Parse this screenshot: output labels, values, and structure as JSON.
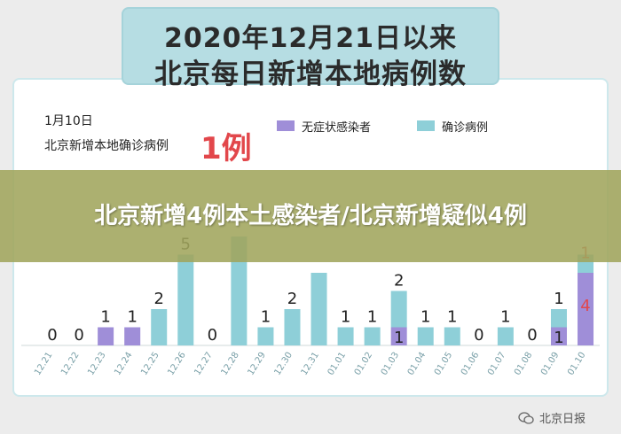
{
  "title": {
    "line1": "2020年12月21日以来",
    "line2": "北京每日新增本地病例数"
  },
  "note": {
    "date": "1月10日",
    "label": "北京新增本地确诊病例",
    "count": "1例"
  },
  "banner": {
    "text": "北京新增4例本土感染者/北京新增疑似4例"
  },
  "watermark": {
    "text": "北京日报"
  },
  "colors": {
    "confirmed": "#8ecfd8",
    "asymptomatic": "#9f8ed8",
    "highlight": "#e2474b"
  },
  "chart_data": {
    "type": "bar",
    "stacked": true,
    "categories": [
      "12.21",
      "12.22",
      "12.23",
      "12.24",
      "12.25",
      "12.26",
      "12.27",
      "12.28",
      "12.29",
      "12.30",
      "12.31",
      "01.01",
      "01.02",
      "01.03",
      "01.04",
      "01.05",
      "01.06",
      "01.07",
      "01.08",
      "01.09",
      "01.10"
    ],
    "series": [
      {
        "name": "无症状感染者",
        "values": [
          0,
          0,
          1,
          1,
          0,
          0,
          0,
          0,
          0,
          0,
          0,
          0,
          0,
          1,
          0,
          0,
          0,
          0,
          0,
          1,
          4
        ]
      },
      {
        "name": "确诊病例",
        "values": [
          0,
          0,
          0,
          0,
          2,
          5,
          0,
          6,
          1,
          2,
          4,
          1,
          1,
          2,
          1,
          1,
          0,
          1,
          0,
          1,
          1
        ]
      }
    ],
    "data_labels": [
      {
        "category": "12.21",
        "series": "total",
        "text": "0"
      },
      {
        "category": "12.22",
        "series": "total",
        "text": "0"
      },
      {
        "category": "12.23",
        "series": "无症状感染者",
        "text": "1"
      },
      {
        "category": "12.24",
        "series": "无症状感染者",
        "text": "1"
      },
      {
        "category": "12.25",
        "series": "确诊病例",
        "text": "2"
      },
      {
        "category": "12.26",
        "series": "确诊病例",
        "text": "5"
      },
      {
        "category": "12.27",
        "series": "total",
        "text": "0"
      },
      {
        "category": "12.29",
        "series": "确诊病例",
        "text": "1"
      },
      {
        "category": "12.30",
        "series": "确诊病例",
        "text": "2"
      },
      {
        "category": "01.01",
        "series": "确诊病例",
        "text": "1"
      },
      {
        "category": "01.02",
        "series": "确诊病例",
        "text": "1"
      },
      {
        "category": "01.03",
        "series": "确诊病例",
        "text": "2"
      },
      {
        "category": "01.03",
        "series": "无症状感染者",
        "text": "1"
      },
      {
        "category": "01.04",
        "series": "确诊病例",
        "text": "1"
      },
      {
        "category": "01.05",
        "series": "确诊病例",
        "text": "1"
      },
      {
        "category": "01.06",
        "series": "total",
        "text": "0"
      },
      {
        "category": "01.07",
        "series": "确诊病例",
        "text": "1"
      },
      {
        "category": "01.08",
        "series": "total",
        "text": "0"
      },
      {
        "category": "01.09",
        "series": "确诊病例",
        "text": "1"
      },
      {
        "category": "01.09",
        "series": "无症状感染者",
        "text": "1"
      },
      {
        "category": "01.10",
        "series": "确诊病例",
        "text": "1"
      },
      {
        "category": "01.10",
        "series": "无症状感染者",
        "text": "4"
      }
    ],
    "ylim": [
      0,
      7
    ],
    "grid": false,
    "legend_position": "top-right"
  }
}
